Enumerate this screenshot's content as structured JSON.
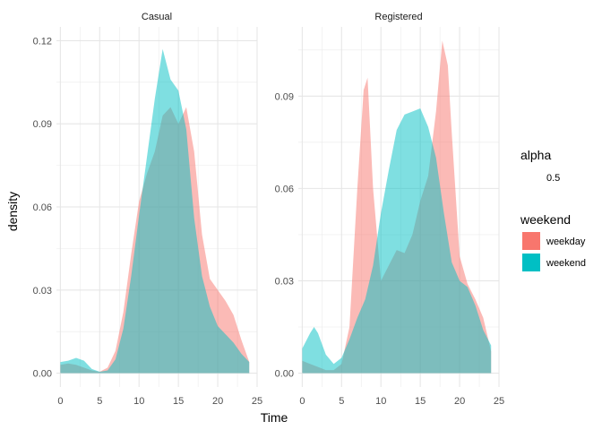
{
  "chart_data": {
    "type": "area",
    "xlabel": "Time",
    "ylabel": "density",
    "facets": [
      {
        "label": "Casual",
        "xlim": [
          -0.5,
          25
        ],
        "ylim": [
          -0.005,
          0.125
        ],
        "xticks": [
          0,
          5,
          10,
          15,
          20,
          25
        ],
        "yticks": [
          0.0,
          0.03,
          0.06,
          0.09,
          0.12
        ],
        "ytick_labels": [
          "0.00",
          "0.03",
          "0.06",
          "0.09",
          "0.12"
        ],
        "series": [
          {
            "name": "weekday",
            "x": [
              0,
              1,
              2,
              3,
              4,
              5,
              6,
              7,
              8,
              9,
              10,
              11,
              12,
              13,
              14,
              15,
              16,
              17,
              18,
              19,
              20,
              21,
              22,
              23,
              24
            ],
            "y": [
              0.003,
              0.0035,
              0.003,
              0.002,
              0.001,
              0.0005,
              0.002,
              0.008,
              0.022,
              0.043,
              0.062,
              0.072,
              0.08,
              0.093,
              0.096,
              0.09,
              0.096,
              0.08,
              0.05,
              0.034,
              0.03,
              0.026,
              0.021,
              0.012,
              0.004
            ]
          },
          {
            "name": "weekend",
            "x": [
              0,
              1,
              2,
              3,
              4,
              5,
              6,
              7,
              8,
              9,
              10,
              11,
              12,
              13,
              14,
              15,
              16,
              17,
              18,
              19,
              20,
              21,
              22,
              23,
              24
            ],
            "y": [
              0.004,
              0.0045,
              0.0055,
              0.0045,
              0.0015,
              0.0005,
              0.001,
              0.005,
              0.016,
              0.035,
              0.057,
              0.078,
              0.099,
              0.117,
              0.106,
              0.102,
              0.088,
              0.056,
              0.035,
              0.024,
              0.017,
              0.014,
              0.011,
              0.007,
              0.004
            ]
          }
        ]
      },
      {
        "label": "Registered",
        "xlim": [
          -0.5,
          25
        ],
        "ylim": [
          -0.0045,
          0.1125
        ],
        "xticks": [
          0,
          5,
          10,
          15,
          20,
          25
        ],
        "yticks": [
          0.0,
          0.03,
          0.06,
          0.09
        ],
        "ytick_labels": [
          "0.00",
          "0.03",
          "0.06",
          "0.09"
        ],
        "series": [
          {
            "name": "weekday",
            "x": [
              0,
              1,
              2,
              3,
              4,
              5,
              6,
              7,
              7.8,
              8.3,
              9,
              10,
              11,
              12,
              13,
              14,
              15,
              16,
              17,
              17.8,
              18.5,
              19,
              20,
              21,
              22,
              23,
              24
            ],
            "y": [
              0.004,
              0.003,
              0.002,
              0.001,
              0.001,
              0.003,
              0.015,
              0.06,
              0.092,
              0.096,
              0.06,
              0.03,
              0.035,
              0.04,
              0.039,
              0.045,
              0.056,
              0.064,
              0.085,
              0.108,
              0.1,
              0.078,
              0.038,
              0.029,
              0.024,
              0.018,
              0.007
            ]
          },
          {
            "name": "weekend",
            "x": [
              0,
              1,
              1.5,
              2,
              3,
              4,
              5,
              6,
              7,
              8,
              9,
              10,
              11,
              12,
              13,
              14,
              15,
              16,
              17,
              18,
              19,
              20,
              21,
              22,
              23,
              24
            ],
            "y": [
              0.008,
              0.013,
              0.015,
              0.013,
              0.006,
              0.003,
              0.005,
              0.011,
              0.018,
              0.024,
              0.035,
              0.052,
              0.066,
              0.079,
              0.084,
              0.085,
              0.086,
              0.08,
              0.07,
              0.052,
              0.036,
              0.03,
              0.028,
              0.022,
              0.014,
              0.009
            ]
          }
        ]
      }
    ],
    "legends": [
      {
        "title": "alpha",
        "entries": [
          {
            "label": "0.5"
          }
        ]
      },
      {
        "title": "weekend",
        "entries": [
          {
            "label": "weekday",
            "color": "#F8766D"
          },
          {
            "label": "weekend",
            "color": "#00BFC4"
          }
        ]
      }
    ],
    "colors": {
      "weekday": "#F8766D",
      "weekend": "#00BFC4"
    },
    "fill_opacity": 0.5,
    "grid": true,
    "legend_position": "right"
  }
}
